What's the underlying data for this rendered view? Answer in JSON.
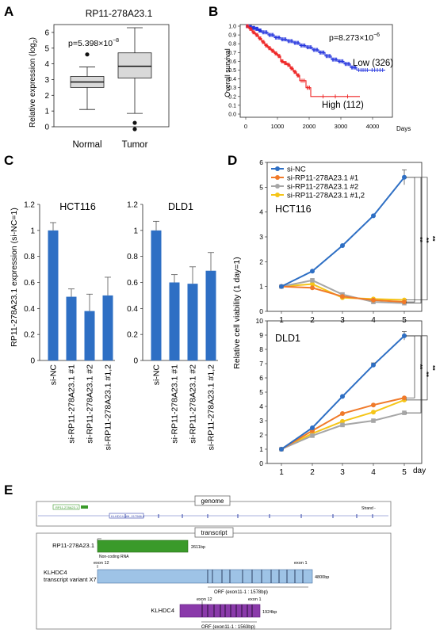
{
  "panels": {
    "A": "A",
    "B": "B",
    "C": "C",
    "D": "D",
    "E": "E"
  },
  "chart_data": [
    {
      "panel": "A",
      "type": "box",
      "title": "RP11-278A23.1",
      "ylabel": "Relative expression (log",
      "ylabel_sub": "2",
      "ylabel_close": ")",
      "annotation": "p=5.398×10",
      "annotation_exp": "−8",
      "ylim": [
        0,
        6.5
      ],
      "yticks": [
        "0",
        "1",
        "2",
        "3",
        "4",
        "5",
        "6"
      ],
      "categories": [
        "Normal",
        "Tumor"
      ],
      "boxes": [
        {
          "whisker_low": 1.1,
          "q1": 2.5,
          "median": 2.85,
          "q3": 3.2,
          "whisker_high": 3.8,
          "outliers": [
            4.6
          ]
        },
        {
          "whisker_low": 0.85,
          "q1": 3.1,
          "median": 3.85,
          "q3": 4.7,
          "whisker_high": 6.3,
          "outliers": [
            0.25,
            -0.15
          ]
        }
      ],
      "colors": {
        "fill": "#d9d9d9",
        "stroke": "#222222"
      }
    },
    {
      "panel": "B",
      "type": "line",
      "ylabel": "Overall survival",
      "xunit": "Days",
      "annotation": "p=8.273×10",
      "annotation_exp": "−6",
      "xlim": [
        0,
        4500
      ],
      "ylim": [
        0,
        1.0
      ],
      "xticks": [
        "0",
        "1000",
        "2000",
        "3000",
        "4000"
      ],
      "yticks": [
        "0.0",
        "0.1",
        "0.2",
        "0.3",
        "0.4",
        "0.5",
        "0.6",
        "0.7",
        "0.8",
        "0.9",
        "1.0"
      ],
      "series": [
        {
          "name": "Low (326)",
          "color": "#2233dd",
          "x": [
            0,
            100,
            200,
            300,
            400,
            500,
            700,
            900,
            1100,
            1300,
            1500,
            1700,
            1900,
            2100,
            2300,
            2500,
            2700,
            2900,
            3100,
            3300,
            3500,
            3900,
            4400
          ],
          "y": [
            1.0,
            0.99,
            0.98,
            0.97,
            0.95,
            0.93,
            0.9,
            0.87,
            0.85,
            0.83,
            0.81,
            0.78,
            0.76,
            0.73,
            0.7,
            0.66,
            0.62,
            0.6,
            0.57,
            0.53,
            0.5,
            0.5,
            0.5
          ]
        },
        {
          "name": "High (112)",
          "color": "#ee2222",
          "x": [
            0,
            100,
            200,
            300,
            400,
            500,
            600,
            700,
            800,
            900,
            1000,
            1100,
            1200,
            1300,
            1400,
            1500,
            1600,
            1700,
            1900,
            2050,
            3600
          ],
          "y": [
            1.0,
            0.97,
            0.93,
            0.9,
            0.86,
            0.82,
            0.78,
            0.75,
            0.72,
            0.69,
            0.66,
            0.6,
            0.58,
            0.56,
            0.52,
            0.48,
            0.44,
            0.38,
            0.3,
            0.2,
            0.2
          ]
        }
      ]
    },
    {
      "panel": "C",
      "type": "bar",
      "ylabel": "RP11-278A23.1 expression (si-NC=1)",
      "ylim": [
        0,
        1.2
      ],
      "yticks": [
        "0",
        "0.2",
        "0.4",
        "0.6",
        "0.8",
        "1",
        "1.2"
      ],
      "categories": [
        "si-NC",
        "si-RP11-278A23.1 #1",
        "si-RP11-278A23.1 #2",
        "si-RP11-278A23.1 #1,2"
      ],
      "color": "#2e6fc4",
      "groups": [
        {
          "name": "HCT116",
          "values": [
            1.0,
            0.49,
            0.38,
            0.5
          ],
          "errors": [
            0.06,
            0.06,
            0.13,
            0.14
          ]
        },
        {
          "name": "DLD1",
          "values": [
            1.0,
            0.6,
            0.59,
            0.69
          ],
          "errors": [
            0.07,
            0.06,
            0.13,
            0.14
          ]
        }
      ]
    },
    {
      "panel": "D",
      "type": "line",
      "ylabel": "Relative cell viability (1 day=1)",
      "xunit": "day",
      "x": [
        1,
        2,
        3,
        4,
        5
      ],
      "legend": [
        "si-NC",
        "si-RP11-278A23.1 #1",
        "si-RP11-278A23.1 #2",
        "si-RP11-278A23.1 #1,2"
      ],
      "colors": [
        "#2e6fc4",
        "#f07a2a",
        "#a6a6a6",
        "#f5c518"
      ],
      "sig": "**",
      "subplots": [
        {
          "name": "HCT116",
          "ylim": [
            0,
            6
          ],
          "yticks": [
            "0",
            "1",
            "2",
            "3",
            "4",
            "5",
            "6"
          ],
          "series": [
            {
              "name": "si-NC",
              "values": [
                1.0,
                1.62,
                2.65,
                3.85,
                5.4
              ],
              "errors": [
                0,
                0,
                0,
                0,
                0.3
              ]
            },
            {
              "name": "si-RP11-278A23.1 #1",
              "values": [
                1.0,
                0.95,
                0.6,
                0.45,
                0.38
              ],
              "errors": [
                0,
                0,
                0,
                0,
                0
              ]
            },
            {
              "name": "si-RP11-278A23.1 #2",
              "values": [
                1.0,
                1.25,
                0.68,
                0.38,
                0.33
              ],
              "errors": [
                0,
                0,
                0,
                0,
                0
              ]
            },
            {
              "name": "si-RP11-278A23.1 #1,2",
              "values": [
                1.0,
                1.1,
                0.55,
                0.5,
                0.46
              ],
              "errors": [
                0,
                0,
                0,
                0,
                0
              ]
            }
          ]
        },
        {
          "name": "DLD1",
          "ylim": [
            0,
            10
          ],
          "yticks": [
            "0",
            "1",
            "2",
            "3",
            "4",
            "5",
            "6",
            "7",
            "8",
            "9",
            "10"
          ],
          "series": [
            {
              "name": "si-NC",
              "values": [
                1.0,
                2.5,
                4.7,
                6.9,
                8.95
              ],
              "errors": [
                0,
                0,
                0,
                0.15,
                0.3
              ]
            },
            {
              "name": "si-RP11-278A23.1 #1",
              "values": [
                1.0,
                2.3,
                3.5,
                4.1,
                4.6
              ],
              "errors": [
                0,
                0,
                0,
                0,
                0
              ]
            },
            {
              "name": "si-RP11-278A23.1 #2",
              "values": [
                1.0,
                1.95,
                2.7,
                3.0,
                3.55
              ],
              "errors": [
                0,
                0,
                0,
                0,
                0
              ]
            },
            {
              "name": "si-RP11-278A23.1 #1,2",
              "values": [
                1.0,
                2.1,
                2.95,
                3.6,
                4.45
              ],
              "errors": [
                0,
                0,
                0,
                0,
                0
              ]
            }
          ]
        }
      ]
    }
  ],
  "panel_e": {
    "genome_title": "genome",
    "genome_track1": "RP11-278A23.1",
    "genome_strand": "Strand -",
    "genome_track2": "KLHDC4-NM_017566.4",
    "transcript_title": "transcript",
    "rows": [
      {
        "label": "RP11-278A23.1",
        "note": "Non-coding RNA",
        "length": "2611bp",
        "color": "#3a9a2a"
      },
      {
        "label": "KLHDC4",
        "label2": "transcript variant X7",
        "exon_left": "exon 12",
        "exon_right": "exon 1",
        "orf": "ORF (exon11-1 : 1578bp)",
        "length": "4800bp",
        "color": "#9ec3e6"
      },
      {
        "label": "KLHDC4",
        "exon_left": "exon 12",
        "exon_right": "exon 1",
        "orf": "ORF (exon11-1 : 1563bp)",
        "length": "1924bp",
        "color": "#8a3aaa"
      }
    ]
  }
}
